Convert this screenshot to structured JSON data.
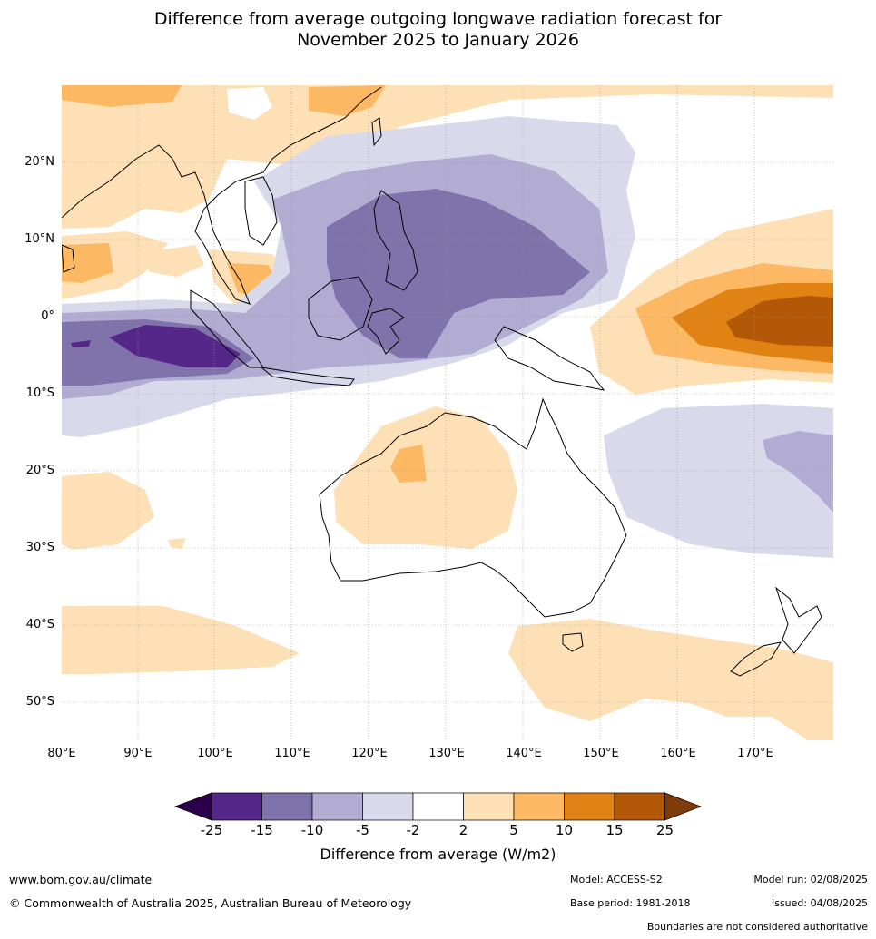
{
  "title": {
    "line1": "Difference from average outgoing longwave radiation forecast for",
    "line2": "November 2025 to January 2026"
  },
  "latitude_labels": [
    "20°N",
    "10°N",
    "0°",
    "10°S",
    "20°S",
    "30°S",
    "40°S",
    "50°S"
  ],
  "longitude_labels": [
    "80°E",
    "90°E",
    "100°E",
    "110°E",
    "120°E",
    "130°E",
    "140°E",
    "150°E",
    "160°E",
    "170°E"
  ],
  "colorbar": {
    "label": "Difference from average (W/m2)",
    "ticks": [
      "-25",
      "-15",
      "-10",
      "-5",
      "-2",
      "2",
      "5",
      "10",
      "15",
      "25"
    ],
    "colors": [
      "#2d004b",
      "#542788",
      "#8073ac",
      "#b2abd2",
      "#d8daeb",
      "#ffffff",
      "#fee0b6",
      "#fdb863",
      "#e08214",
      "#b35806",
      "#7f3b08"
    ]
  },
  "footer": {
    "website": "www.bom.gov.au/climate",
    "copyright": "© Commonwealth of Australia 2025, Australian Bureau of Meteorology",
    "model": "Model: ACCESS-S2",
    "base_period": "Base period: 1981-2018",
    "model_run": "Model run: 02/08/2025",
    "issued": "Issued: 04/08/2025",
    "disclaimer": "Boundaries are not considered authoritative"
  }
}
